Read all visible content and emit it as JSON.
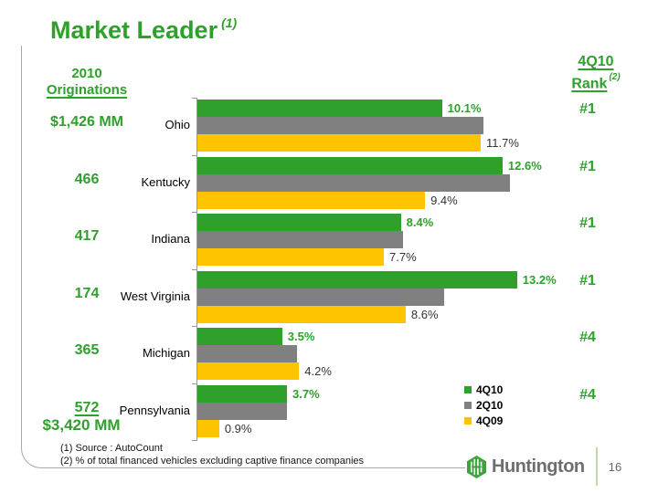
{
  "slide": {
    "title": "Market Leader",
    "title_sup": "(1)",
    "page_number": "16",
    "logo_text": "Huntington",
    "footnote1": "(1) Source : AutoCount",
    "footnote2": "(2)  % of total financed vehicles excluding captive finance companies"
  },
  "left_column": {
    "header_line1": "2010",
    "header_line2": "Originations",
    "values": [
      "$1,426 MM",
      "466",
      "417",
      "174",
      "365",
      "572"
    ],
    "total": "$3,420 MM"
  },
  "right_column": {
    "header_line1": "4Q10",
    "header_line2": "Rank",
    "header_sup": "(2)",
    "ranks": [
      "#1",
      "#1",
      "#1",
      "#1",
      "#4",
      "#4"
    ]
  },
  "chart_data": {
    "type": "bar",
    "orientation": "horizontal",
    "title": "",
    "xlabel": "",
    "ylabel": "",
    "xlim": [
      0,
      15
    ],
    "grid": false,
    "legend_position": "bottom-right",
    "categories": [
      "Ohio",
      "Kentucky",
      "Indiana",
      "West Virginia",
      "Michigan",
      "Pennsylvania"
    ],
    "series": [
      {
        "name": "4Q10",
        "color": "#2FA02C",
        "label_color": "#2FA02C",
        "values": [
          10.1,
          12.6,
          8.4,
          13.2,
          3.5,
          3.7
        ],
        "labels": [
          "10.1%",
          "12.6%",
          "8.4%",
          "13.2%",
          "3.5%",
          "3.7%"
        ]
      },
      {
        "name": "2Q10",
        "color": "#808080",
        "label_color": null,
        "values": [
          11.8,
          12.9,
          8.5,
          10.2,
          4.1,
          3.7
        ],
        "labels": [
          null,
          null,
          null,
          null,
          null,
          null
        ]
      },
      {
        "name": "4Q09",
        "color": "#FFC400",
        "label_color": "#333333",
        "values": [
          11.7,
          9.4,
          7.7,
          8.6,
          4.2,
          0.9
        ],
        "labels": [
          "11.7%",
          "9.4%",
          "7.7%",
          "8.6%",
          "4.2%",
          "0.9%"
        ]
      }
    ]
  },
  "colors": {
    "accent_green": "#2FA02C",
    "bar_gray": "#808080",
    "bar_yellow": "#FFC400",
    "frame_gray": "#A9A9A9",
    "logo_green": "#3FA23F",
    "logo_gray": "#6D6E71",
    "separator_green": "#BCD9AB"
  }
}
